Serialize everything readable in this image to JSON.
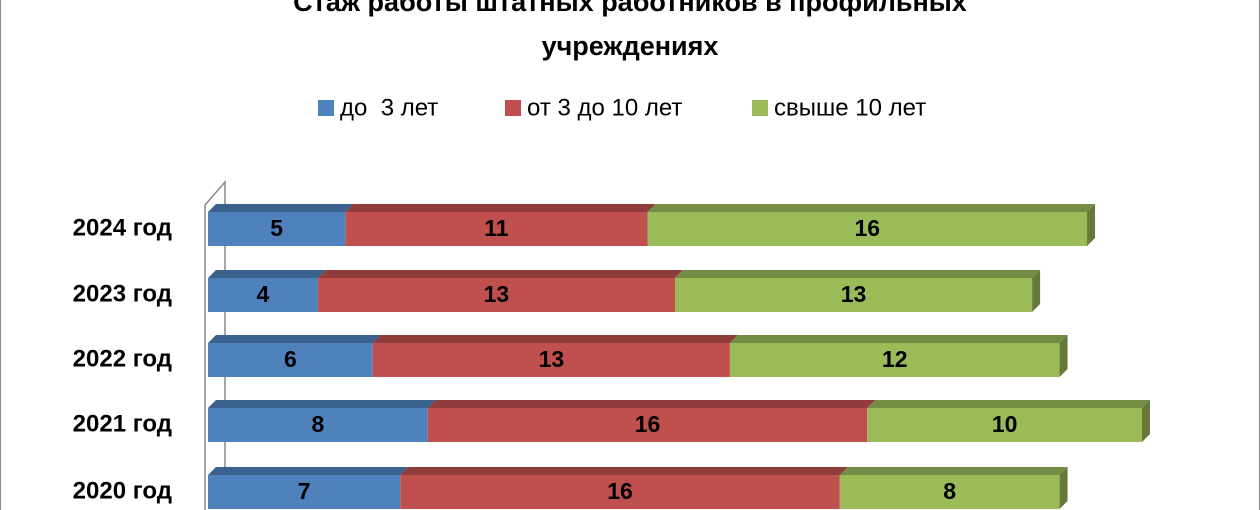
{
  "chart_data": {
    "type": "bar",
    "orientation": "horizontal",
    "stacked": true,
    "title": [
      "Стаж работы штатных работников в профильных",
      "учреждениях"
    ],
    "categories": [
      "2024 год",
      "2023 год",
      "2022 год",
      "2021 год",
      "2020 год"
    ],
    "series": [
      {
        "name": "до  3 лет",
        "color": "#4f81bd",
        "values": [
          5,
          4,
          6,
          8,
          7
        ]
      },
      {
        "name": "от 3 до 10 лет",
        "color": "#c0504d",
        "values": [
          11,
          13,
          13,
          16,
          16
        ]
      },
      {
        "name": "свыше 10 лет",
        "color": "#9bbb59",
        "values": [
          16,
          13,
          12,
          10,
          8
        ]
      }
    ],
    "legend": "top"
  }
}
